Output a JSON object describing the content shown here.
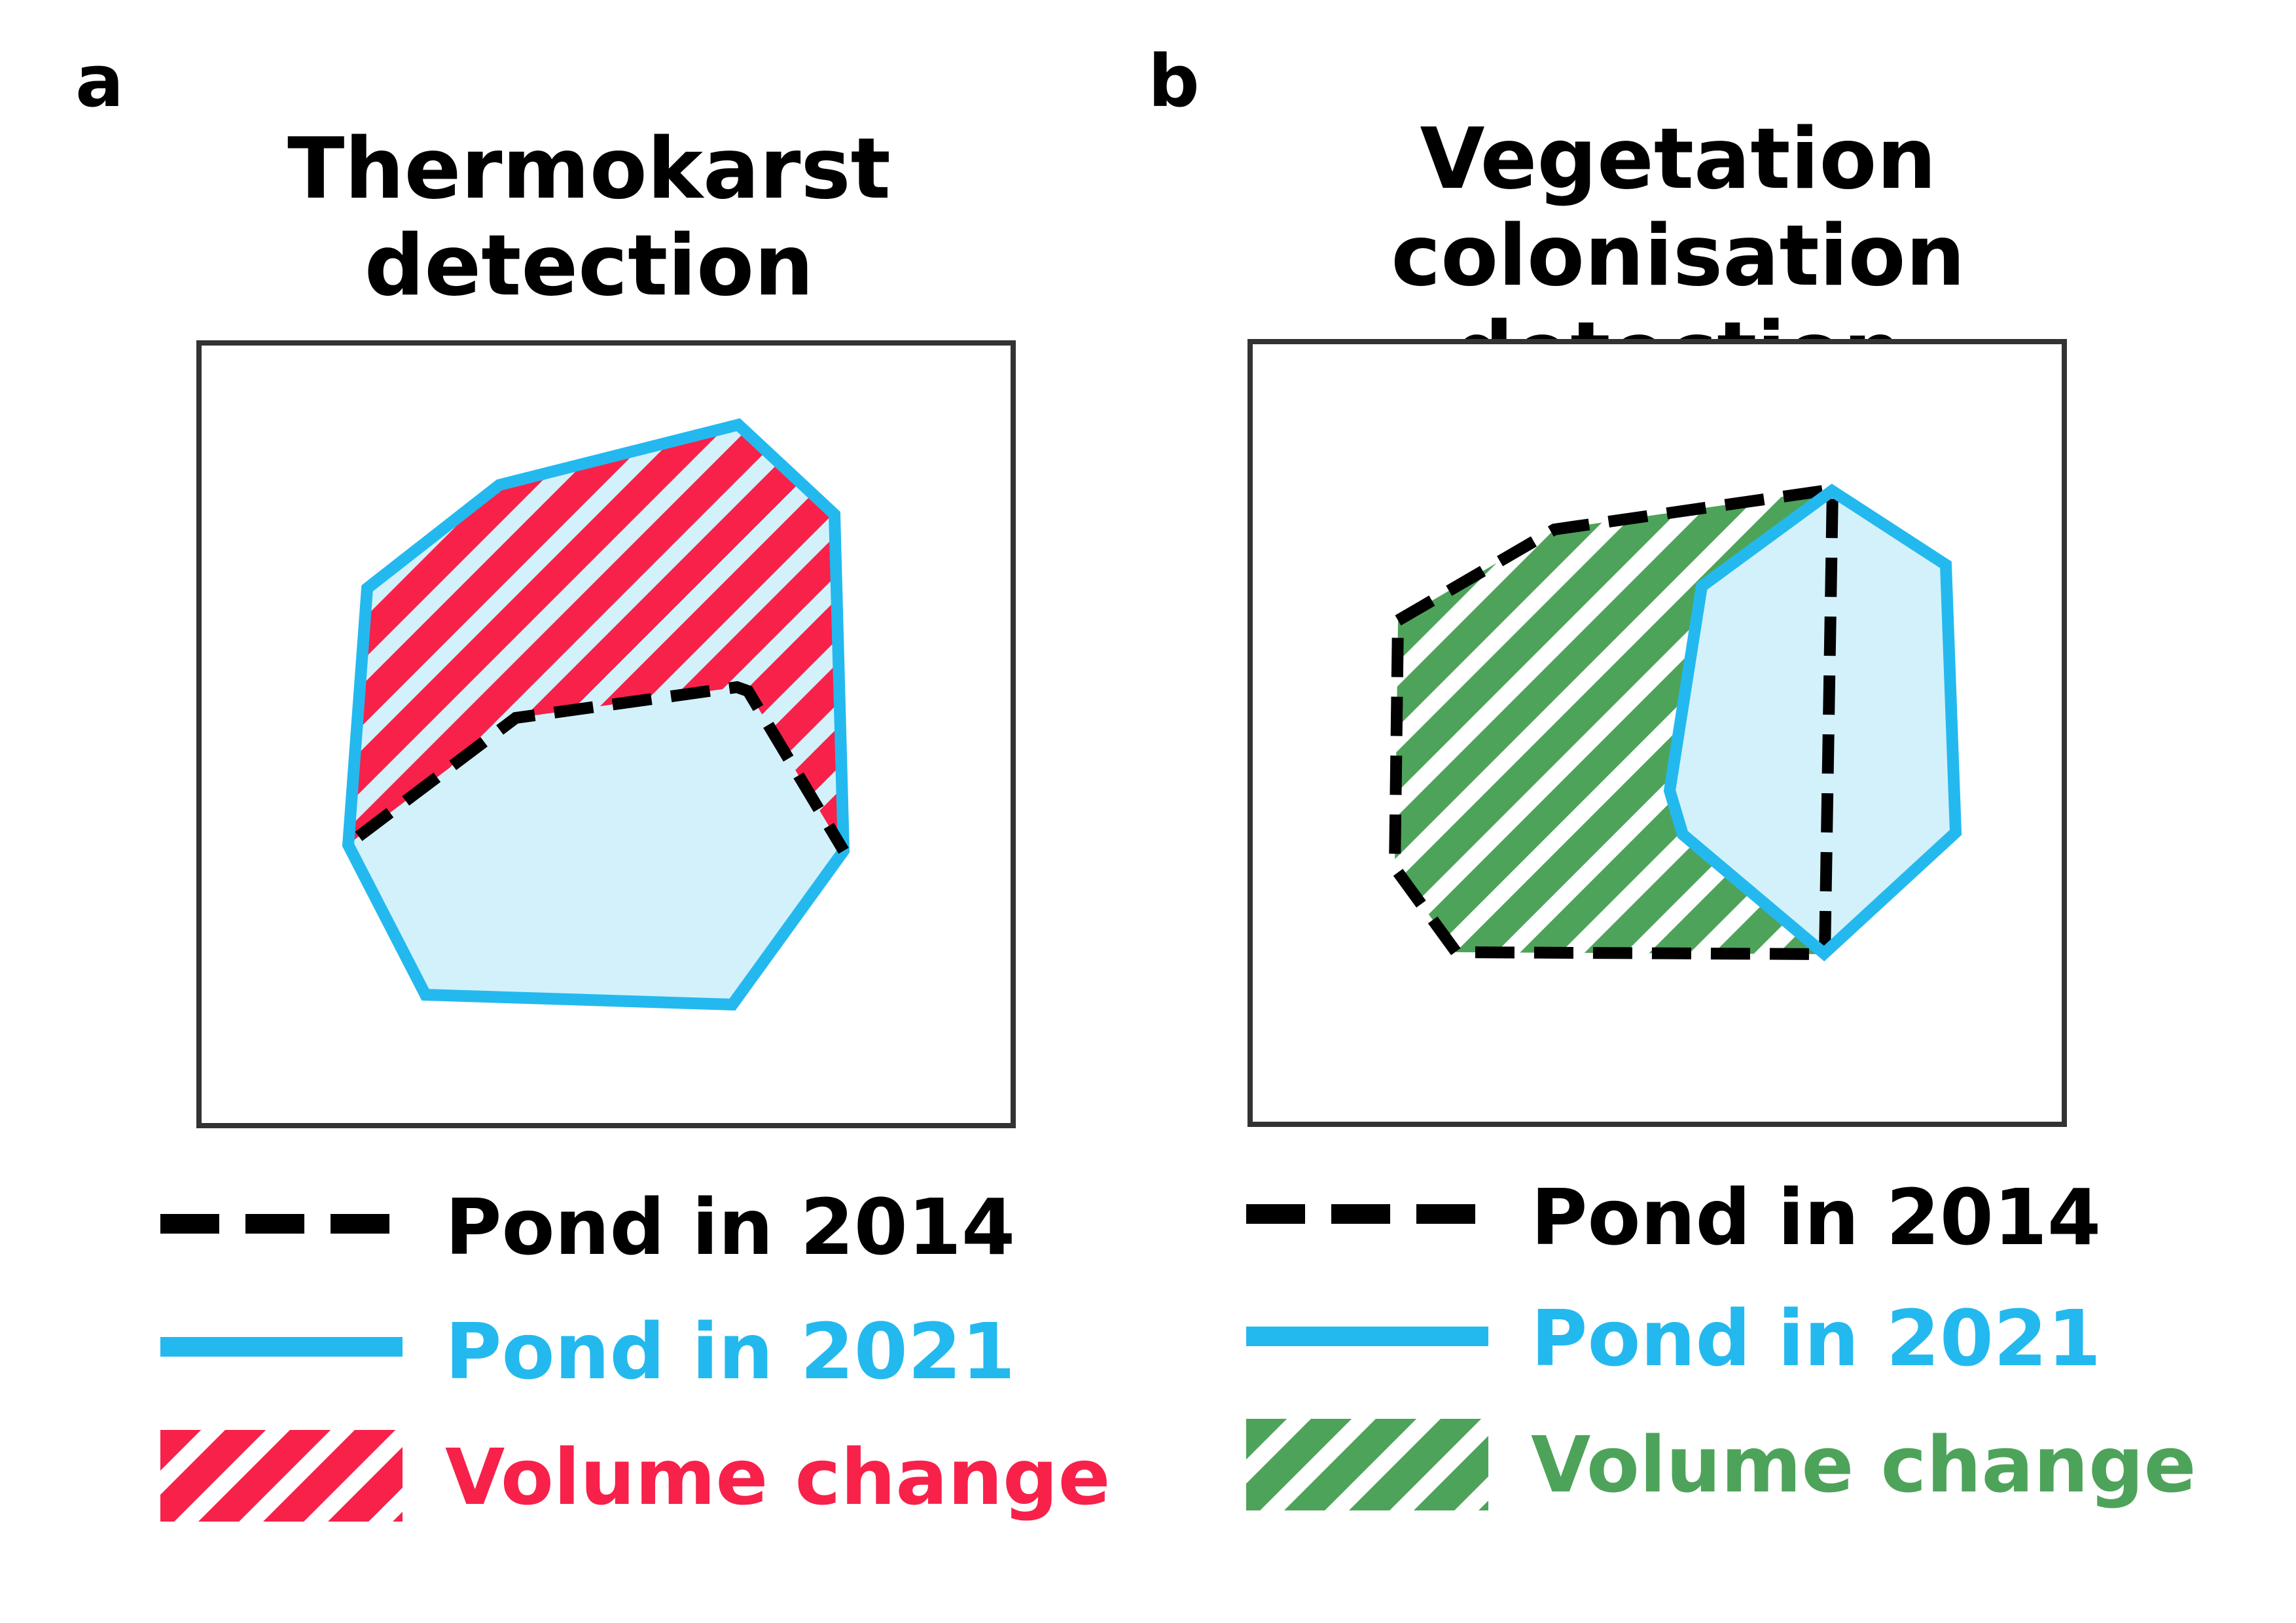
{
  "panels": [
    {
      "letter": "a",
      "title_line1": "Thermokarst",
      "title_line2": "detection",
      "legend": [
        {
          "label": "Pond in 2014",
          "color": "#000000",
          "icon": "dashed-line"
        },
        {
          "label": "Pond in 2021",
          "color": "#23b9ef",
          "icon": "solid-line"
        },
        {
          "label": "Volume change",
          "color": "#f7214a",
          "icon": "hatched-swatch"
        }
      ]
    },
    {
      "letter": "b",
      "title_line1": "Vegetation colonisation",
      "title_line2": "detection",
      "legend": [
        {
          "label": "Pond in 2014",
          "color": "#000000",
          "icon": "dashed-line"
        },
        {
          "label": "Pond in 2021",
          "color": "#23b9ef",
          "icon": "solid-line"
        },
        {
          "label": "Volume change",
          "color": "#4ea35a",
          "icon": "hatched-swatch"
        }
      ]
    }
  ],
  "colors": {
    "pond_2014": "#000000",
    "pond_2021": "#23b9ef",
    "water_fill": "#d3f1fa",
    "thermokarst_change": "#f7214a",
    "vegetation_change": "#4ea35a",
    "frame": "#333333"
  }
}
